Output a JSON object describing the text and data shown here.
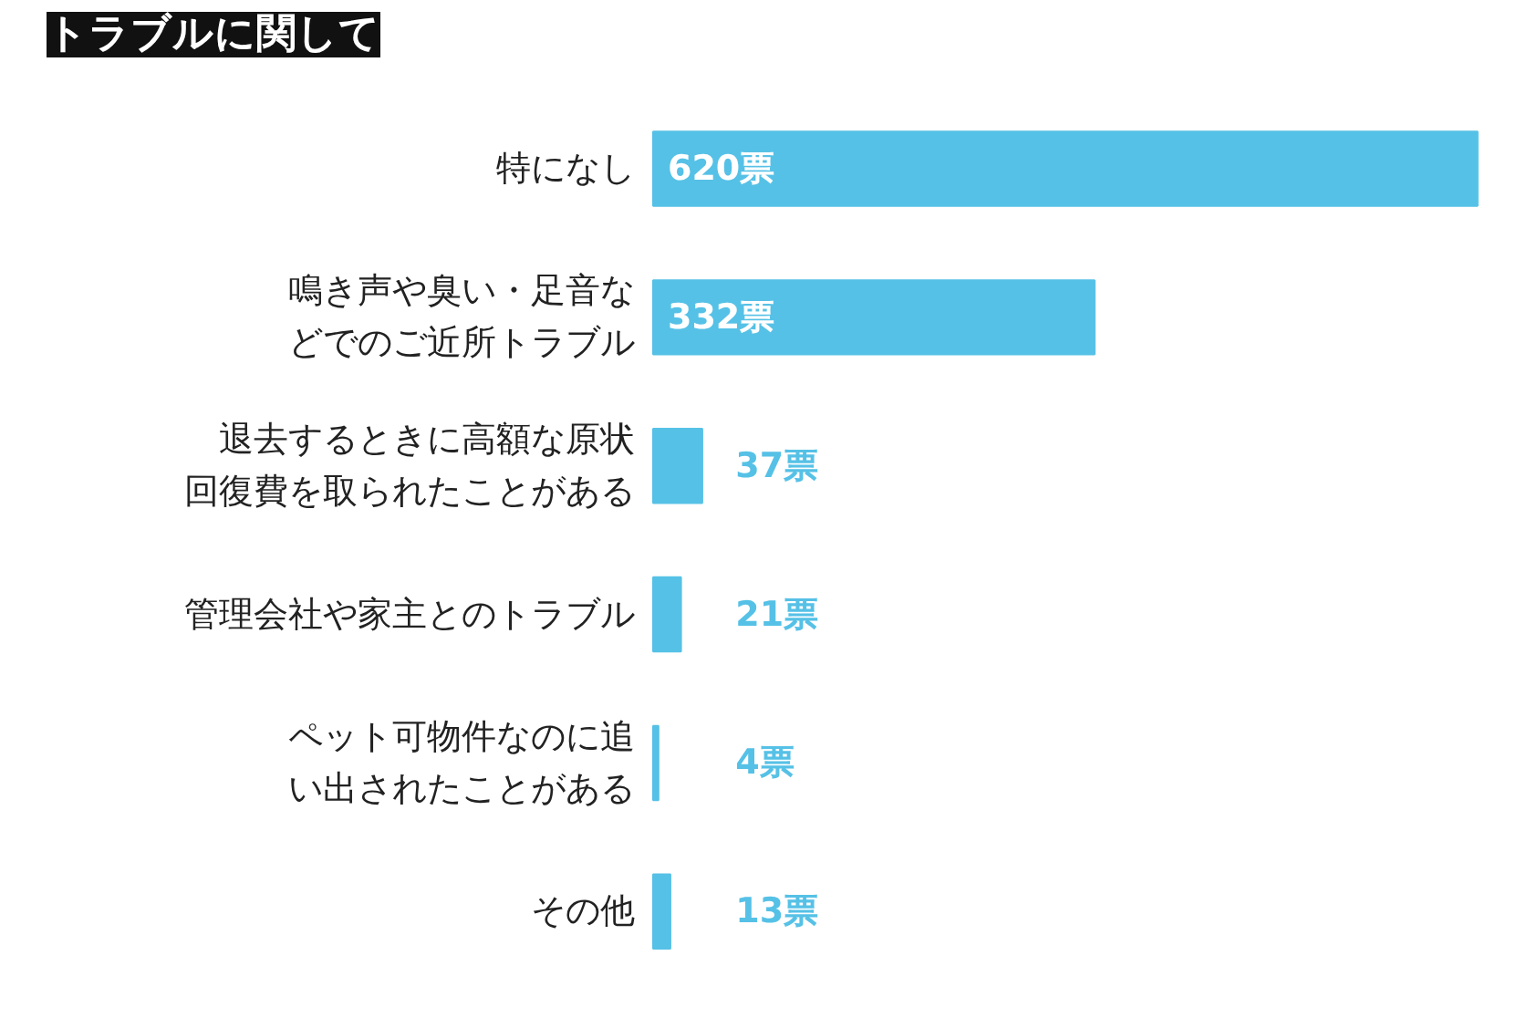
{
  "chart_data": {
    "type": "bar",
    "orientation": "horizontal",
    "title": "トラブルに関して",
    "categories": [
      "特になし",
      "鳴き声や臭い・足音などでのご近所トラブル",
      "退去するときに高額な原状回復費を取られたことがある",
      "管理会社や家主とのトラブル",
      "ペット可物件なのに追い出されたことがある",
      "その他"
    ],
    "values": [
      620,
      332,
      37,
      21,
      4,
      13
    ],
    "value_labels": [
      "620票",
      "332票",
      "37票",
      "21票",
      "4票",
      "13票"
    ],
    "color": "#56c1e6",
    "grid": false
  }
}
